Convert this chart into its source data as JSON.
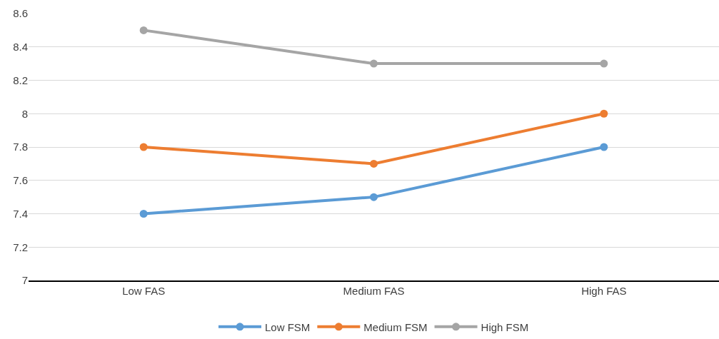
{
  "chart_data": {
    "type": "line",
    "categories": [
      "Low FAS",
      "Medium FAS",
      "High FAS"
    ],
    "series": [
      {
        "name": "Low FSM",
        "color": "#5b9bd5",
        "values": [
          7.4,
          7.5,
          7.8
        ]
      },
      {
        "name": "Medium FSM",
        "color": "#ed7d31",
        "values": [
          7.8,
          7.7,
          8.0
        ]
      },
      {
        "name": "High FSM",
        "color": "#a5a5a5",
        "values": [
          8.5,
          8.3,
          8.3
        ]
      }
    ],
    "ylim": [
      7,
      8.6
    ],
    "yticks": [
      7,
      7.2,
      7.4,
      7.6,
      7.8,
      8,
      8.2,
      8.4,
      8.6
    ],
    "grid": "y",
    "legend": "bottom",
    "marker": "circle",
    "line_style": "solid"
  }
}
